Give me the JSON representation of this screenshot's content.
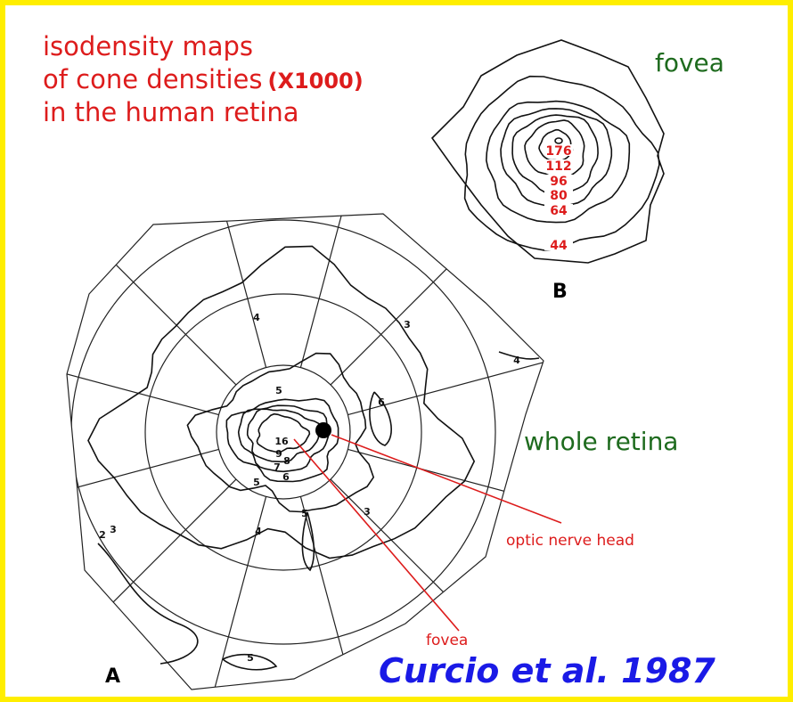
{
  "title": {
    "lines": [
      "isodensity maps",
      "of cone densities",
      "in the human retina"
    ],
    "multiplier": "(X1000)"
  },
  "panel_b": {
    "label": "B",
    "caption": "fovea",
    "contour_labels": [
      176,
      112,
      96,
      80,
      64,
      44
    ]
  },
  "panel_a": {
    "label": "A",
    "caption": "whole retina",
    "contour_labels": [
      4,
      3,
      4,
      6,
      5,
      16,
      9,
      8,
      7,
      6,
      5,
      5,
      4,
      3,
      2,
      3,
      5
    ],
    "annotations": [
      "optic nerve head",
      "fovea"
    ]
  },
  "citation": "Curcio et al. 1987"
}
